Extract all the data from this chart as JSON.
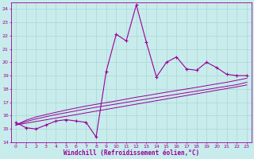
{
  "xlabel": "Windchill (Refroidissement éolien,°C)",
  "bg_color": "#c8ecec",
  "grid_color": "#b0d8d8",
  "line_color": "#990099",
  "x_data": [
    0,
    1,
    2,
    3,
    4,
    5,
    6,
    7,
    8,
    9,
    10,
    11,
    12,
    13,
    14,
    15,
    16,
    17,
    18,
    19,
    20,
    21,
    22,
    23
  ],
  "y_main": [
    15.5,
    15.1,
    15.0,
    15.3,
    15.6,
    15.7,
    15.6,
    15.5,
    14.4,
    19.3,
    22.1,
    21.6,
    24.3,
    21.5,
    18.9,
    20.0,
    20.4,
    19.5,
    19.4,
    20.0,
    19.6,
    19.1,
    19.0,
    19.0
  ],
  "y_lin1": [
    15.3,
    15.43,
    15.56,
    15.69,
    15.82,
    15.95,
    16.08,
    16.21,
    16.34,
    16.47,
    16.6,
    16.73,
    16.86,
    16.99,
    17.12,
    17.25,
    17.38,
    17.51,
    17.64,
    17.77,
    17.9,
    18.03,
    18.16,
    18.3
  ],
  "y_lin2": [
    15.3,
    15.55,
    15.75,
    15.92,
    16.08,
    16.22,
    16.36,
    16.5,
    16.63,
    16.75,
    16.87,
    17.0,
    17.12,
    17.24,
    17.36,
    17.48,
    17.6,
    17.72,
    17.84,
    17.96,
    18.08,
    18.2,
    18.32,
    18.5
  ],
  "y_lin3": [
    15.3,
    15.65,
    15.9,
    16.08,
    16.25,
    16.42,
    16.57,
    16.72,
    16.85,
    16.98,
    17.1,
    17.24,
    17.38,
    17.5,
    17.63,
    17.76,
    17.88,
    18.0,
    18.12,
    18.25,
    18.38,
    18.5,
    18.65,
    18.8
  ],
  "xlim": [
    -0.5,
    23.5
  ],
  "ylim": [
    14.0,
    24.5
  ],
  "yticks": [
    14,
    15,
    16,
    17,
    18,
    19,
    20,
    21,
    22,
    23,
    24
  ],
  "xticks": [
    0,
    1,
    2,
    3,
    4,
    5,
    6,
    7,
    8,
    9,
    10,
    11,
    12,
    13,
    14,
    15,
    16,
    17,
    18,
    19,
    20,
    21,
    22,
    23
  ]
}
